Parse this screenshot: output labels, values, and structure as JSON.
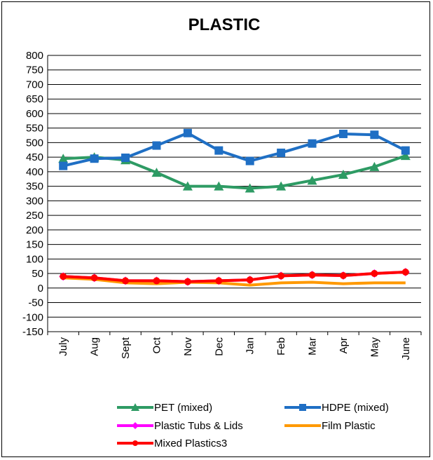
{
  "chart_data": {
    "type": "line",
    "title": "PLASTIC",
    "xlabel": "",
    "ylabel": "",
    "categories": [
      "July",
      "Aug",
      "Sept",
      "Oct",
      "Nov",
      "Dec",
      "Jan",
      "Feb",
      "Mar",
      "Apr",
      "May",
      "June"
    ],
    "y_ticks": [
      "800",
      "750",
      "700",
      "650",
      "600",
      "550",
      "500",
      "450",
      "400",
      "350",
      "300",
      "250",
      "200",
      "150",
      "100",
      "50",
      "0",
      "-50",
      "-100",
      "-150"
    ],
    "ylim": [
      -150,
      800
    ],
    "grid": true,
    "legend_position": "bottom",
    "series": [
      {
        "name": "PET (mixed)",
        "color": "#2e9b64",
        "marker": "triangle",
        "values": [
          445,
          450,
          440,
          397,
          350,
          350,
          343,
          350,
          370,
          390,
          417,
          455
        ]
      },
      {
        "name": "HDPE (mixed)",
        "color": "#1f6fc4",
        "marker": "square",
        "values": [
          420,
          445,
          448,
          490,
          533,
          473,
          437,
          465,
          497,
          530,
          527,
          473
        ]
      },
      {
        "name": "Plastic Tubs & Lids",
        "color": "#ff00ff",
        "marker": "diamond",
        "values": [
          40,
          35,
          25,
          25,
          22,
          25,
          28,
          42,
          45,
          43,
          50,
          55
        ]
      },
      {
        "name": "Film Plastic",
        "color": "#ff9900",
        "marker": "none",
        "values": [
          35,
          30,
          18,
          15,
          20,
          18,
          10,
          18,
          20,
          15,
          18,
          18
        ]
      },
      {
        "name": "Mixed Plastics3",
        "color": "#ff0000",
        "marker": "circle",
        "values": [
          40,
          35,
          25,
          25,
          22,
          25,
          28,
          42,
          45,
          43,
          50,
          55
        ]
      }
    ]
  }
}
